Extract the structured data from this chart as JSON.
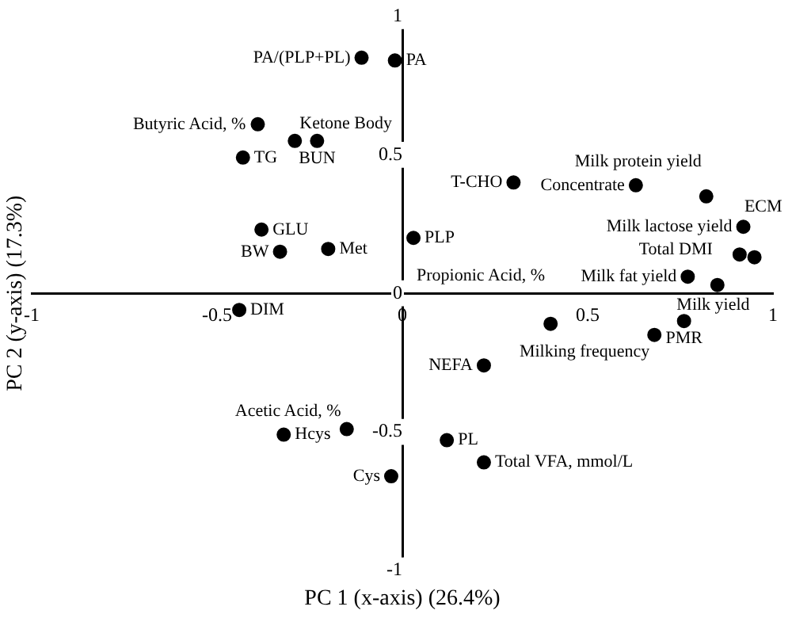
{
  "chart_data": {
    "type": "scatter",
    "xlabel": "PC 1 (x-axis) (26.4%)",
    "ylabel": "PC 2 (y-axis) (17.3%)",
    "x": [
      -0.11,
      -0.02,
      -0.39,
      -0.29,
      -0.23,
      -0.43,
      -0.38,
      -0.33,
      -0.2,
      -0.44,
      -0.15,
      -0.32,
      -0.03,
      0.03,
      0.3,
      0.63,
      0.82,
      0.92,
      0.91,
      0.95,
      0.77,
      0.85,
      0.4,
      0.76,
      0.68,
      0.22,
      0.12,
      0.22
    ],
    "values": [
      0.85,
      0.84,
      0.61,
      0.55,
      0.55,
      0.49,
      0.23,
      0.15,
      0.16,
      -0.06,
      -0.49,
      -0.51,
      -0.66,
      0.2,
      0.4,
      0.39,
      0.35,
      0.24,
      0.14,
      0.13,
      0.06,
      0.03,
      -0.11,
      -0.1,
      -0.15,
      -0.26,
      -0.53,
      -0.61
    ],
    "color": "#000000",
    "marker": "circle",
    "grid": false,
    "legend": false,
    "xlim": [
      -1,
      1
    ],
    "ylim": [
      -1,
      1
    ],
    "xticks": [
      -1,
      -0.5,
      0,
      0.5,
      1
    ],
    "yticks": [
      -1,
      -0.5,
      0,
      0.5,
      1
    ],
    "annotations": [
      {
        "text": "PA/(PLP+PL)",
        "x": -0.11,
        "y": 0.85
      },
      {
        "text": "PA",
        "x": -0.02,
        "y": 0.84
      },
      {
        "text": "Butyric Acid, %",
        "x": -0.39,
        "y": 0.61
      },
      {
        "text": "Ketone Body",
        "x": -0.29,
        "y": 0.55
      },
      {
        "text": "BUN",
        "x": -0.23,
        "y": 0.55
      },
      {
        "text": "TG",
        "x": -0.43,
        "y": 0.49
      },
      {
        "text": "GLU",
        "x": -0.38,
        "y": 0.23
      },
      {
        "text": "BW",
        "x": -0.33,
        "y": 0.15
      },
      {
        "text": "Met",
        "x": -0.2,
        "y": 0.16
      },
      {
        "text": "DIM",
        "x": -0.44,
        "y": -0.06
      },
      {
        "text": "Acetic Acid, %",
        "x": -0.15,
        "y": -0.49
      },
      {
        "text": "Hcys",
        "x": -0.32,
        "y": -0.51
      },
      {
        "text": "Cys",
        "x": -0.03,
        "y": -0.66
      },
      {
        "text": "PLP",
        "x": 0.03,
        "y": 0.2
      },
      {
        "text": "T-CHO",
        "x": 0.3,
        "y": 0.4
      },
      {
        "text": "Concentrate",
        "x": 0.63,
        "y": 0.39
      },
      {
        "text": "Milk protein yield",
        "x": 0.82,
        "y": 0.35
      },
      {
        "text": "Milk lactose yield",
        "x": 0.92,
        "y": 0.24
      },
      {
        "text": "ECM",
        "x": 0.91,
        "y": 0.14
      },
      {
        "text": "Milk yield",
        "x": 0.95,
        "y": 0.13
      },
      {
        "text": "Milk fat yield",
        "x": 0.77,
        "y": 0.06
      },
      {
        "text": "Total DMI",
        "x": 0.85,
        "y": 0.03
      },
      {
        "text": "Propionic Acid, %",
        "x": 0.4,
        "y": -0.11
      },
      {
        "text": "PMR",
        "x": 0.76,
        "y": -0.1
      },
      {
        "text": "Milking frequency",
        "x": 0.68,
        "y": -0.15
      },
      {
        "text": "NEFA",
        "x": 0.22,
        "y": -0.26
      },
      {
        "text": "PL",
        "x": 0.12,
        "y": -0.53
      },
      {
        "text": "Total VFA, mmol/L",
        "x": 0.22,
        "y": -0.61
      }
    ]
  }
}
